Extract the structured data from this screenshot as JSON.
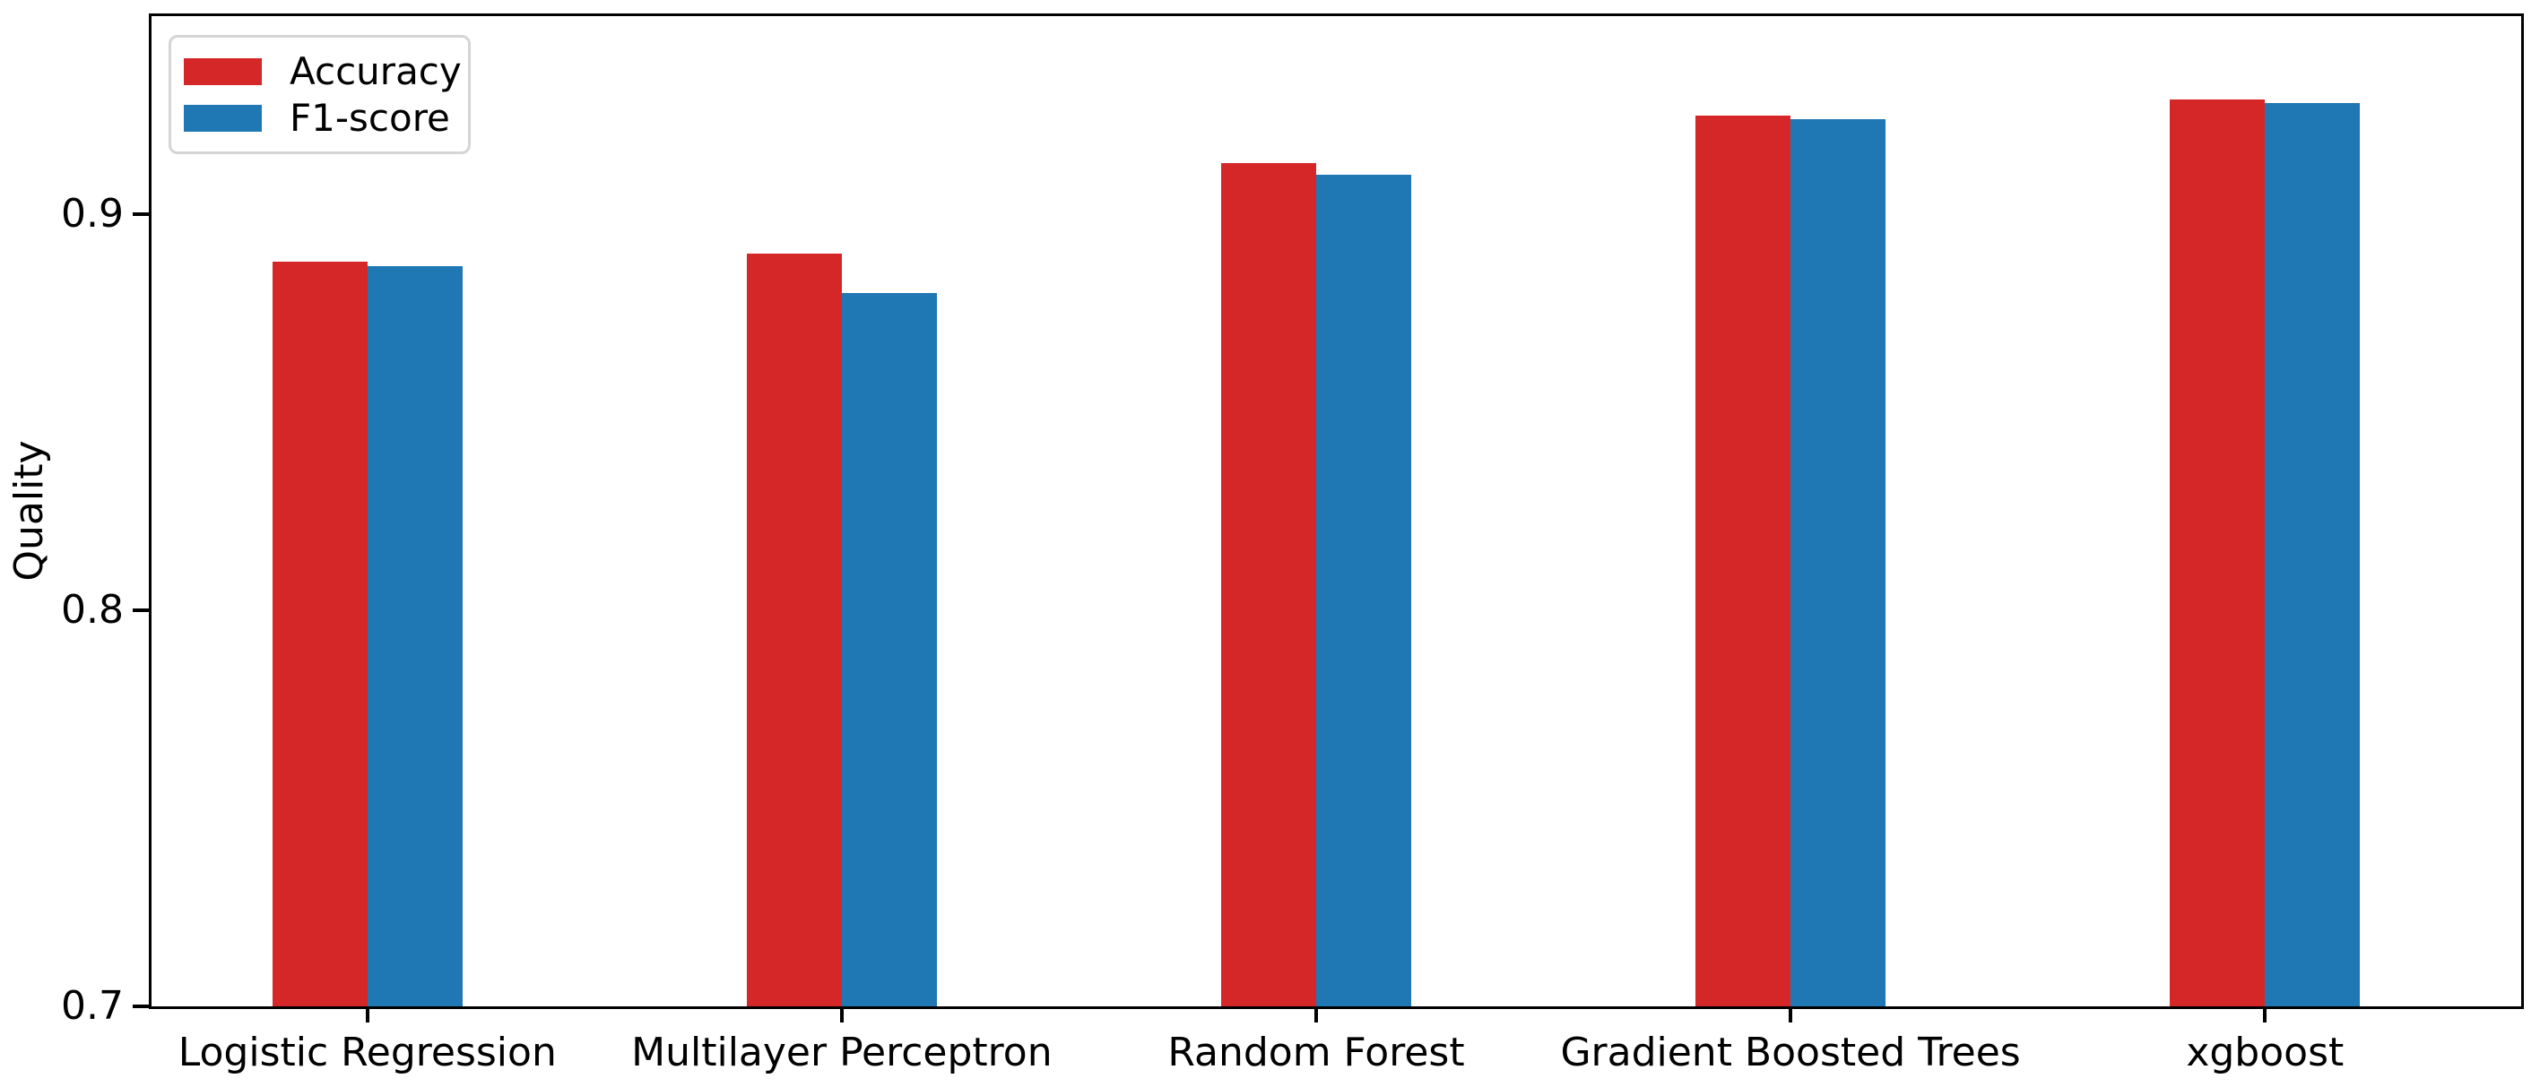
{
  "chart_data": {
    "type": "bar",
    "title": "",
    "categories": [
      "Logistic Regression",
      "Multilayer Perceptron",
      "Random Forest",
      "Gradient Boosted Trees",
      "xgboost"
    ],
    "series": [
      {
        "name": "Accuracy",
        "color": "#d62728",
        "values": [
          0.888,
          0.89,
          0.913,
          0.925,
          0.929
        ]
      },
      {
        "name": "F1-score",
        "color": "#1f77b4",
        "values": [
          0.887,
          0.88,
          0.91,
          0.924,
          0.928
        ]
      }
    ],
    "xlabel": "",
    "ylabel": "Quality",
    "ylim": [
      0.7,
      0.95
    ],
    "xlim": [
      -0.455,
      4.54
    ],
    "yticks": [
      0.7,
      0.8,
      0.9
    ],
    "ytick_labels": [
      "0.7",
      "0.8",
      "0.9"
    ],
    "bar_width_units": 0.2,
    "grid": false,
    "legend_position": "upper left",
    "colors": {
      "axis": "#000000",
      "legend_border": "#d5d5d5",
      "background": "#ffffff"
    }
  }
}
